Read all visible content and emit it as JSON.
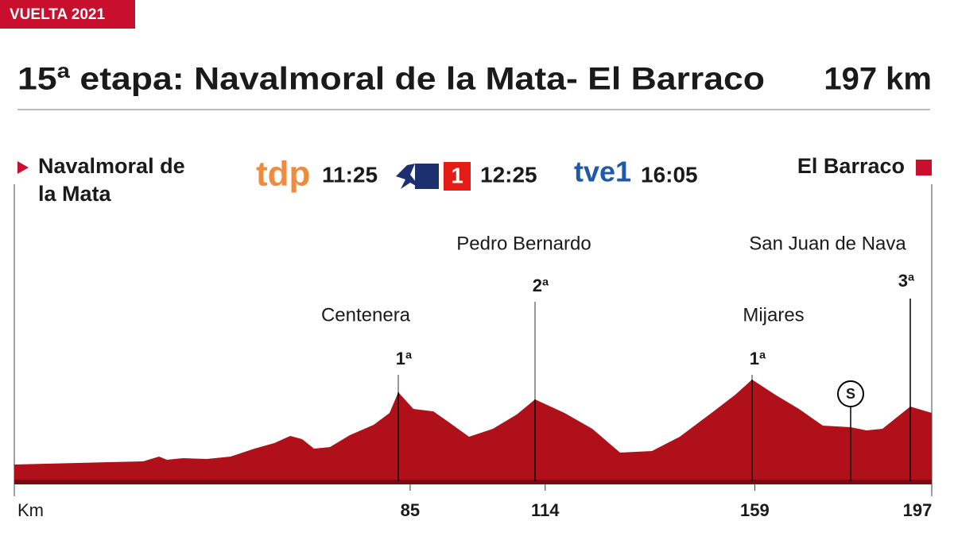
{
  "badge": "VUELTA 2021",
  "header": {
    "title": "15ª etapa: Navalmoral de la Mata- El Barraco",
    "distance": "197 km"
  },
  "start": {
    "line1": "Navalmoral de",
    "line2": "la Mata"
  },
  "finish": "El Barraco",
  "broadcasts": [
    {
      "channel": "tdp",
      "time": "11:25"
    },
    {
      "channel": "1",
      "time": "12:25"
    },
    {
      "channel": "tve1",
      "time": "16:05"
    }
  ],
  "profile": {
    "axis_label": "Km",
    "xlim": [
      0,
      197
    ],
    "xticks": [
      85,
      114,
      159,
      197
    ],
    "climbs": [
      {
        "name": "Centenera",
        "category": "1ª"
      },
      {
        "name": "Pedro Bernardo",
        "category": "2ª"
      },
      {
        "name": "Mijares",
        "category": "1ª"
      },
      {
        "name": "San Juan de Nava",
        "category": "3ª"
      }
    ],
    "sprint": "S"
  }
}
